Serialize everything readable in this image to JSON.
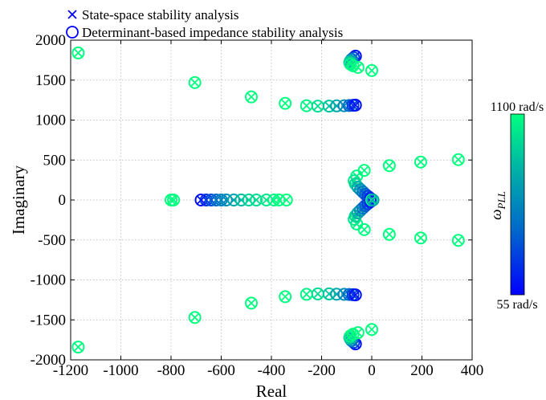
{
  "chart_data": {
    "type": "scatter",
    "xlabel": "Real",
    "ylabel": "Imaginary",
    "xlim": [
      -1200,
      400
    ],
    "ylim": [
      -2000,
      2000
    ],
    "xticks": [
      "-1200",
      "-1000",
      "-800",
      "-600",
      "-400",
      "-200",
      "0",
      "200",
      "400"
    ],
    "yticks": [
      "2000",
      "1500",
      "1000",
      "500",
      "0",
      "-500",
      "-1000",
      "-1500",
      "-2000"
    ],
    "grid": true,
    "legend": [
      {
        "marker": "x",
        "label": "State-space stability analysis"
      },
      {
        "marker": "o",
        "label": "Determinant-based impedance stability analysis"
      }
    ],
    "colorbar": {
      "label": "ω",
      "label_sub": "PLL",
      "max_label": "1100 rad/s",
      "min_label": "55 rad/s",
      "colors": [
        "#0000ff",
        "#0066cc",
        "#00b3a6",
        "#00ff80"
      ]
    },
    "series": [
      {
        "points": [
          [
            -1170,
            1840,
            1
          ],
          [
            -1170,
            -1840,
            1
          ]
        ]
      },
      {
        "points": [
          [
            -705,
            1470,
            1
          ],
          [
            -705,
            -1470,
            1
          ]
        ]
      },
      {
        "points": [
          [
            -480,
            1290,
            1
          ],
          [
            -480,
            -1290,
            1
          ]
        ]
      },
      {
        "points": [
          [
            -345,
            1210,
            1
          ],
          [
            -345,
            -1210,
            1
          ]
        ]
      },
      {
        "points": [
          [
            -260,
            1180,
            0.95
          ],
          [
            -215,
            1175,
            0.85
          ],
          [
            -170,
            1175,
            0.75
          ],
          [
            -140,
            1178,
            0.62
          ],
          [
            -110,
            1180,
            0.5
          ],
          [
            -90,
            1182,
            0.35
          ],
          [
            -75,
            1185,
            0.2
          ],
          [
            -65,
            1187,
            0.05
          ],
          [
            -260,
            -1180,
            0.95
          ],
          [
            -215,
            -1175,
            0.85
          ],
          [
            -170,
            -1175,
            0.75
          ],
          [
            -140,
            -1178,
            0.62
          ],
          [
            -110,
            -1180,
            0.5
          ],
          [
            -90,
            -1182,
            0.35
          ],
          [
            -75,
            -1185,
            0.2
          ],
          [
            -65,
            -1187,
            0.05
          ]
        ]
      },
      {
        "points": [
          [
            -65,
            1800,
            0.05
          ],
          [
            -72,
            1780,
            0.2
          ],
          [
            -80,
            1760,
            0.4
          ],
          [
            -85,
            1740,
            0.6
          ],
          [
            -88,
            1720,
            0.8
          ],
          [
            -85,
            1700,
            0.95
          ],
          [
            -75,
            1680,
            1
          ],
          [
            -55,
            1660,
            1
          ],
          [
            0,
            1620,
            1
          ],
          [
            -65,
            -1800,
            0.05
          ],
          [
            -72,
            -1780,
            0.2
          ],
          [
            -80,
            -1760,
            0.4
          ],
          [
            -85,
            -1740,
            0.6
          ],
          [
            -88,
            -1720,
            0.8
          ],
          [
            -85,
            -1700,
            0.95
          ],
          [
            -75,
            -1680,
            1
          ],
          [
            -55,
            -1660,
            1
          ],
          [
            0,
            -1620,
            1
          ]
        ]
      },
      {
        "points": [
          [
            -800,
            0,
            1
          ],
          [
            -790,
            0,
            1
          ],
          [
            -680,
            0,
            0.05
          ],
          [
            -660,
            0,
            0.15
          ],
          [
            -640,
            0,
            0.25
          ],
          [
            -620,
            0,
            0.35
          ],
          [
            -600,
            0,
            0.45
          ],
          [
            -580,
            0,
            0.5
          ],
          [
            -550,
            0,
            0.6
          ],
          [
            -520,
            0,
            0.7
          ],
          [
            -490,
            0,
            0.8
          ],
          [
            -460,
            0,
            0.85
          ],
          [
            -420,
            0,
            0.9
          ],
          [
            -390,
            0,
            0.95
          ],
          [
            -370,
            0,
            1
          ],
          [
            -340,
            0,
            1
          ]
        ]
      },
      {
        "points": [
          [
            -60,
            300,
            0.95
          ],
          [
            -70,
            240,
            0.9
          ],
          [
            -65,
            200,
            0.8
          ],
          [
            -55,
            160,
            0.65
          ],
          [
            -45,
            130,
            0.5
          ],
          [
            -35,
            100,
            0.4
          ],
          [
            -25,
            70,
            0.3
          ],
          [
            -15,
            45,
            0.2
          ],
          [
            -5,
            20,
            0.1
          ],
          [
            -60,
            -300,
            0.95
          ],
          [
            -70,
            -240,
            0.9
          ],
          [
            -65,
            -200,
            0.8
          ],
          [
            -55,
            -160,
            0.65
          ],
          [
            -45,
            -130,
            0.5
          ],
          [
            -35,
            -100,
            0.4
          ],
          [
            -25,
            -70,
            0.3
          ],
          [
            -15,
            -45,
            0.2
          ],
          [
            -5,
            -20,
            0.1
          ],
          [
            0,
            0,
            1
          ],
          [
            5,
            0,
            0.6
          ]
        ]
      },
      {
        "points": [
          [
            -30,
            370,
            1
          ],
          [
            -30,
            -370,
            1
          ]
        ]
      },
      {
        "points": [
          [
            70,
            430,
            1
          ],
          [
            70,
            -430,
            1
          ]
        ]
      },
      {
        "points": [
          [
            195,
            475,
            1
          ],
          [
            195,
            -475,
            1
          ]
        ]
      },
      {
        "points": [
          [
            345,
            505,
            1
          ],
          [
            345,
            -505,
            1
          ]
        ]
      }
    ]
  }
}
